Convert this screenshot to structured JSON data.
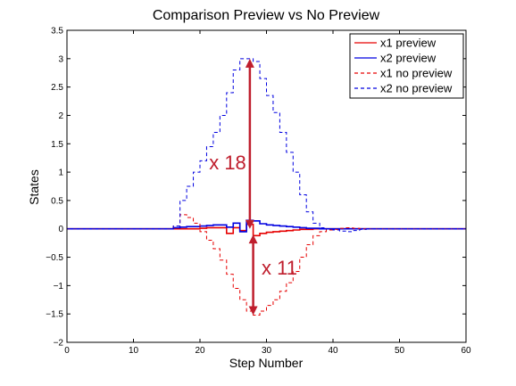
{
  "chart_data": {
    "type": "line",
    "title": "Comparison Preview vs No Preview",
    "xlabel": "Step Number",
    "ylabel": "States",
    "xlim": [
      0,
      60
    ],
    "ylim": [
      -2,
      3.5
    ],
    "xticks": [
      0,
      10,
      20,
      30,
      40,
      50,
      60
    ],
    "xtick_labels": [
      "0",
      "10",
      "20",
      "30",
      "40",
      "50",
      "60"
    ],
    "yticks": [
      -2,
      -1.5,
      -1,
      -0.5,
      0,
      0.5,
      1,
      1.5,
      2,
      2.5,
      3,
      3.5
    ],
    "ytick_labels": [
      "−2",
      "−1.5",
      "−1",
      "−0.5",
      "0",
      "0.5",
      "1",
      "1.5",
      "2",
      "2.5",
      "3",
      "3.5"
    ],
    "grid": false,
    "legend_position": "top-right",
    "x": [
      0,
      1,
      2,
      3,
      4,
      5,
      6,
      7,
      8,
      9,
      10,
      11,
      12,
      13,
      14,
      15,
      16,
      17,
      18,
      19,
      20,
      21,
      22,
      23,
      24,
      25,
      26,
      27,
      28,
      29,
      30,
      31,
      32,
      33,
      34,
      35,
      36,
      37,
      38,
      39,
      40,
      41,
      42,
      43,
      44,
      45,
      46,
      47,
      48,
      49,
      50,
      51,
      52,
      53,
      54,
      55,
      56,
      57,
      58,
      59,
      60
    ],
    "series": [
      {
        "name": "x1 preview",
        "color": "#e60000",
        "dash": "solid",
        "values": [
          0,
          0,
          0,
          0,
          0,
          0,
          0,
          0,
          0,
          0,
          0,
          0,
          0,
          0,
          0,
          0,
          0,
          0,
          0,
          0,
          0.01,
          0.02,
          0.02,
          0.02,
          -0.08,
          0.02,
          -0.03,
          0.08,
          -0.12,
          -0.08,
          -0.06,
          -0.05,
          -0.04,
          -0.03,
          -0.02,
          -0.01,
          -0.01,
          0,
          0,
          0,
          0,
          0,
          0,
          0,
          0,
          0,
          0,
          0,
          0,
          0,
          0,
          0,
          0,
          0,
          0,
          0,
          0,
          0,
          0,
          0,
          0
        ]
      },
      {
        "name": "x2 preview",
        "color": "#0000e0",
        "dash": "solid",
        "values": [
          0,
          0,
          0,
          0,
          0,
          0,
          0,
          0,
          0,
          0,
          0,
          0,
          0,
          0,
          0,
          0,
          0.02,
          0.03,
          0.04,
          0.04,
          0.05,
          0.06,
          0.07,
          0.07,
          0.03,
          0.1,
          -0.05,
          0.15,
          0.14,
          0.09,
          0.07,
          0.06,
          0.05,
          0.04,
          0.03,
          0.02,
          0.01,
          0.01,
          0,
          0,
          0,
          0,
          0,
          0,
          0,
          0,
          0,
          0,
          0,
          0,
          0,
          0,
          0,
          0,
          0,
          0,
          0,
          0,
          0,
          0,
          0
        ]
      },
      {
        "name": "x1 no preview",
        "color": "#e60000",
        "dash": "dashed",
        "values": [
          0,
          0,
          0,
          0,
          0,
          0,
          0,
          0,
          0,
          0,
          0,
          0,
          0,
          0,
          0,
          0,
          0.05,
          0.25,
          0.2,
          0.1,
          -0.05,
          -0.2,
          -0.35,
          -0.55,
          -0.8,
          -1.05,
          -1.25,
          -1.45,
          -1.52,
          -1.45,
          -1.35,
          -1.25,
          -1.1,
          -0.95,
          -0.75,
          -0.5,
          -0.28,
          -0.12,
          -0.05,
          -0.02,
          -0.01,
          0.01,
          0.02,
          0.01,
          0,
          0,
          0,
          0,
          0,
          0,
          0,
          0,
          0,
          0,
          0,
          0,
          0,
          0,
          0,
          0,
          0
        ]
      },
      {
        "name": "x2 no preview",
        "color": "#0000e0",
        "dash": "dashed",
        "values": [
          0,
          0,
          0,
          0,
          0,
          0,
          0,
          0,
          0,
          0,
          0,
          0,
          0,
          0,
          0,
          0,
          0.05,
          0.5,
          0.75,
          1,
          1.2,
          1.45,
          1.7,
          2,
          2.4,
          2.8,
          3,
          3,
          2.95,
          2.65,
          2.35,
          2.05,
          1.7,
          1.35,
          1,
          0.6,
          0.3,
          0.1,
          0.02,
          0,
          -0.02,
          -0.04,
          -0.05,
          -0.03,
          -0.01,
          0,
          0,
          0,
          0,
          0,
          0,
          0,
          0,
          0,
          0,
          0,
          0,
          0,
          0,
          0,
          0
        ]
      }
    ],
    "annotations": [
      {
        "text": "x 18",
        "arrow_x": 27.5,
        "arrow_from": 0,
        "arrow_to": 3,
        "color": "#bf1e2d"
      },
      {
        "text": "x 11",
        "arrow_x": 28,
        "arrow_from": -0.1,
        "arrow_to": -1.52,
        "color": "#bf1e2d"
      }
    ]
  }
}
